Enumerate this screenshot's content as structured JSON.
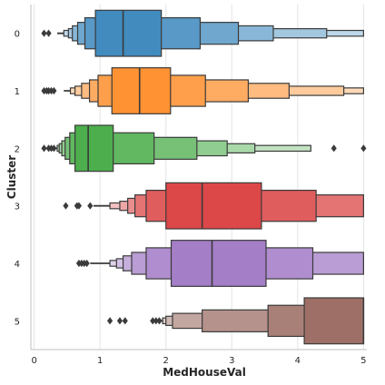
{
  "chart_data": {
    "type": "boxen",
    "orientation": "horizontal",
    "xlabel": "MedHouseVal",
    "ylabel": "Cluster",
    "xlim": [
      -0.05,
      5.05
    ],
    "xticks": [
      "0",
      "1",
      "2",
      "3",
      "4",
      "5"
    ],
    "grid": "vertical",
    "categories": [
      "0",
      "1",
      "2",
      "3",
      "4",
      "5"
    ],
    "series": [
      {
        "category": "0",
        "color": "#1f77b4",
        "median": 1.35,
        "levels": [
          [
            0.93,
            1.93
          ],
          [
            0.77,
            2.52
          ],
          [
            0.66,
            3.1
          ],
          [
            0.58,
            3.63
          ],
          [
            0.52,
            4.44
          ],
          [
            0.45,
            5.0
          ]
        ],
        "whisker": [
          0.35,
          5.0
        ],
        "outliers": [
          0.15,
          0.22
        ]
      },
      {
        "category": "1",
        "color": "#ff7f0e",
        "median": 1.6,
        "levels": [
          [
            1.18,
            2.07
          ],
          [
            0.97,
            2.6
          ],
          [
            0.84,
            3.25
          ],
          [
            0.72,
            3.87
          ],
          [
            0.62,
            4.7
          ],
          [
            0.55,
            5.0
          ]
        ],
        "whisker": [
          0.45,
          5.0
        ],
        "outliers": [
          0.15,
          0.19,
          0.22,
          0.26,
          0.3
        ]
      },
      {
        "category": "2",
        "color": "#2ca02c",
        "median": 0.82,
        "levels": [
          [
            0.62,
            1.2
          ],
          [
            0.54,
            1.82
          ],
          [
            0.47,
            2.47
          ],
          [
            0.42,
            2.93
          ],
          [
            0.38,
            3.35
          ],
          [
            0.35,
            4.2
          ]
        ],
        "whisker": [
          0.32,
          4.2
        ],
        "outliers": [
          0.15,
          0.22,
          0.26,
          0.3,
          4.55,
          5.0
        ]
      },
      {
        "category": "3",
        "color": "#d62728",
        "median": 2.55,
        "levels": [
          [
            2.0,
            3.45
          ],
          [
            1.7,
            4.28
          ],
          [
            1.53,
            5.0
          ],
          [
            1.42,
            5.0
          ],
          [
            1.3,
            5.0
          ],
          [
            1.15,
            5.0
          ]
        ],
        "whisker": [
          0.9,
          5.0
        ],
        "outliers": [
          0.48,
          0.65,
          0.68,
          0.85
        ]
      },
      {
        "category": "4",
        "color": "#9467bd",
        "median": 2.7,
        "levels": [
          [
            2.08,
            3.52
          ],
          [
            1.7,
            4.23
          ],
          [
            1.48,
            5.0
          ],
          [
            1.35,
            5.0
          ],
          [
            1.25,
            5.0
          ],
          [
            1.15,
            5.0
          ]
        ],
        "whisker": [
          0.85,
          5.0
        ],
        "outliers": [
          0.68,
          0.72,
          0.76,
          0.8
        ]
      },
      {
        "category": "5",
        "color": "#8c564b",
        "median": 5.0,
        "levels": [
          [
            4.1,
            5.0
          ],
          [
            3.55,
            5.0
          ],
          [
            2.55,
            5.0
          ],
          [
            2.1,
            5.0
          ],
          [
            2.0,
            5.0
          ],
          [
            1.95,
            5.0
          ]
        ],
        "whisker": [
          1.9,
          5.0
        ],
        "outliers": [
          1.15,
          1.3,
          1.38,
          1.8,
          1.85,
          1.9
        ]
      }
    ]
  }
}
